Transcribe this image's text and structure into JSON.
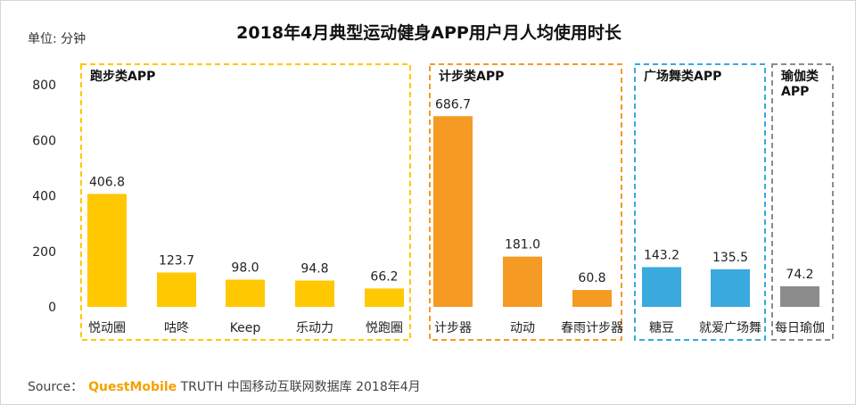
{
  "title": "2018年4月典型运动健身APP用户月人均使用时长",
  "unit_label": "单位: 分钟",
  "source": {
    "label": "Source：",
    "brand": "QuestMobile",
    "text": "TRUTH 中国移动互联网数据库 2018年4月"
  },
  "colors": {
    "running": "#FFC800",
    "walking": "#F59A23",
    "dance": "#3AA9DD",
    "yoga": "#8C8C8C"
  },
  "chart_data": {
    "type": "bar",
    "title": "2018年4月典型运动健身APP用户月人均使用时长",
    "ylabel": "单位: 分钟",
    "ylim": [
      0,
      800
    ],
    "yticks": [
      0,
      200,
      400,
      600,
      800
    ],
    "grid": false,
    "groups": [
      {
        "name": "跑步类APP",
        "color_key": "running",
        "categories": [
          "悦动圈",
          "咕咚",
          "Keep",
          "乐动力",
          "悦跑圈"
        ],
        "values": [
          406.8,
          123.7,
          98.0,
          94.8,
          66.2
        ],
        "value_labels": [
          "406.8",
          "123.7",
          "98.0",
          "94.8",
          "66.2"
        ]
      },
      {
        "name": "计步类APP",
        "color_key": "walking",
        "categories": [
          "计步器",
          "动动",
          "春雨计步器"
        ],
        "values": [
          686.7,
          181.0,
          60.8
        ],
        "value_labels": [
          "686.7",
          "181.0",
          "60.8"
        ]
      },
      {
        "name": "广场舞类APP",
        "color_key": "dance",
        "categories": [
          "糖豆",
          "就爱广场舞"
        ],
        "values": [
          143.2,
          135.5
        ],
        "value_labels": [
          "143.2",
          "135.5"
        ]
      },
      {
        "name": "瑜伽类APP",
        "name_lines": [
          "瑜伽类",
          "APP"
        ],
        "color_key": "yoga",
        "categories": [
          "每日瑜伽"
        ],
        "values": [
          74.2
        ],
        "value_labels": [
          "74.2"
        ]
      }
    ]
  }
}
